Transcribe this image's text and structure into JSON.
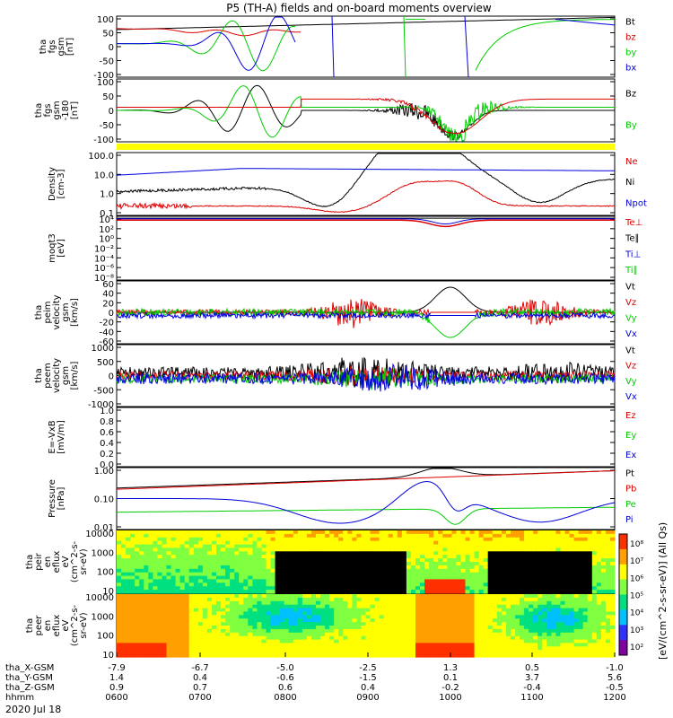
{
  "title": "P5 (TH-A) fields and on-board moments overview",
  "date_label": "2020 Jul 18",
  "colorbar_label": "[eV/(cm^2-s-sr-eV)] (All Qs)",
  "colors": {
    "black": "#000000",
    "red": "#dd0000",
    "green": "#00cc00",
    "blue": "#0000dd",
    "yellow": "#ffff00"
  },
  "chart_data": [
    {
      "id": "fgs",
      "type": "line",
      "ylabel_lines": [
        "tha",
        "fgs",
        "gsm",
        "[nT]"
      ],
      "ylim": [
        -100,
        100
      ],
      "yticks": [
        "100",
        "50",
        "0",
        "-50",
        "-100"
      ],
      "series": [
        {
          "name": "Bt",
          "color": "black"
        },
        {
          "name": "bz",
          "color": "red"
        },
        {
          "name": "by",
          "color": "green"
        },
        {
          "name": "bx",
          "color": "blue"
        }
      ]
    },
    {
      "id": "fgs_dsl",
      "type": "line",
      "ylabel_lines": [
        "tha",
        "fgs",
        "gsm",
        "-180",
        "[nT]"
      ],
      "ylim": [
        -130,
        110
      ],
      "yticks": [
        "100",
        "50",
        "0",
        "-50",
        "-100"
      ],
      "series": [
        {
          "name": "Bz",
          "color": "black"
        },
        {
          "name": "By",
          "color": "green"
        }
      ]
    },
    {
      "id": "density",
      "type": "line",
      "ylabel_lines": [
        "Density",
        "[cm-3]"
      ],
      "log": true,
      "ylim": [
        0.05,
        150
      ],
      "yticks": [
        "100.0",
        "10.0",
        "1.0",
        "0.1"
      ],
      "series": [
        {
          "name": "Ne",
          "color": "red"
        },
        {
          "name": "Ni",
          "color": "black"
        },
        {
          "name": "Npot",
          "color": "blue"
        }
      ]
    },
    {
      "id": "temp",
      "type": "line",
      "ylabel_lines": [
        "moqt3",
        "[eV]"
      ],
      "yticks": [
        "10⁴",
        "10²",
        "10⁰",
        "10⁻²",
        "10⁻⁴",
        "10⁻⁶",
        "10⁻⁸"
      ],
      "series": [
        {
          "name": "Te⊥",
          "color": "red"
        },
        {
          "name": "Te∥",
          "color": "black"
        },
        {
          "name": "Ti⊥",
          "color": "blue"
        },
        {
          "name": "Ti∥",
          "color": "green"
        }
      ]
    },
    {
      "id": "peim",
      "type": "line",
      "ylabel_lines": [
        "tha",
        "peim",
        "velocity",
        "gsm",
        "[km/s]"
      ],
      "ylim": [
        -60,
        60
      ],
      "yticks": [
        "60",
        "40",
        "20",
        "0",
        "-20",
        "-40",
        "-60"
      ],
      "series": [
        {
          "name": "Vt",
          "color": "black"
        },
        {
          "name": "Vz",
          "color": "red"
        },
        {
          "name": "Vy",
          "color": "green"
        },
        {
          "name": "Vx",
          "color": "blue"
        }
      ]
    },
    {
      "id": "peem",
      "type": "line",
      "ylabel_lines": [
        "tha",
        "peem",
        "velocity",
        "gsm",
        "[km/s]"
      ],
      "ylim": [
        -1000,
        1000
      ],
      "yticks": [
        "1000",
        "500",
        "0",
        "-500",
        "-1000"
      ],
      "series": [
        {
          "name": "Vt",
          "color": "black"
        },
        {
          "name": "Vz",
          "color": "red"
        },
        {
          "name": "Vy",
          "color": "green"
        },
        {
          "name": "Vx",
          "color": "blue"
        }
      ]
    },
    {
      "id": "efield",
      "type": "line",
      "ylabel_lines": [
        "E=-VxB",
        "[mV/m]"
      ],
      "yticks": [
        "1.0",
        "0.8",
        "0.6",
        "0.4",
        "0.2",
        "0.0"
      ],
      "series": [
        {
          "name": "Ez",
          "color": "red"
        },
        {
          "name": "Ey",
          "color": "green"
        },
        {
          "name": "Ex",
          "color": "blue"
        }
      ]
    },
    {
      "id": "pressure",
      "type": "line",
      "ylabel_lines": [
        "Pressure",
        "[nPa]"
      ],
      "log": true,
      "ylim": [
        0.004,
        8
      ],
      "yticks": [
        "1.00",
        "0.10",
        "0.01"
      ],
      "series": [
        {
          "name": "Pt",
          "color": "black"
        },
        {
          "name": "Pb",
          "color": "red"
        },
        {
          "name": "Pe",
          "color": "green"
        },
        {
          "name": "Pi",
          "color": "blue"
        }
      ]
    },
    {
      "id": "peir",
      "type": "heatmap",
      "ylabel_lines": [
        "tha",
        "peir",
        "en",
        "eflux",
        "eV",
        "(cm^2-s-",
        "sr-eV)"
      ],
      "ylim": [
        5,
        25000
      ],
      "yticks": [
        "10000",
        "1000",
        "100",
        "10"
      ]
    },
    {
      "id": "peer",
      "type": "heatmap",
      "ylabel_lines": [
        "tha",
        "peer",
        "en",
        "eflux",
        "eV",
        "(cm^2-s-",
        "sr-eV)"
      ],
      "ylim": [
        5,
        25000
      ],
      "yticks": [
        "10000",
        "1000",
        "100",
        "10"
      ]
    }
  ],
  "colorbar_ticks": [
    "10⁸",
    "10⁷",
    "10⁶",
    "10⁵",
    "10⁴",
    "10³",
    "10²"
  ],
  "xaxis": {
    "rows": [
      {
        "label": "tha_X-GSM",
        "values": [
          "-7.9",
          "-6.7",
          "-5.0",
          "-2.5",
          "1.3",
          "0.5",
          "-1.0"
        ]
      },
      {
        "label": "tha_Y-GSM",
        "values": [
          "1.4",
          "0.4",
          "-0.6",
          "-1.5",
          "0.1",
          "3.7",
          "5.6"
        ]
      },
      {
        "label": "tha_Z-GSM",
        "values": [
          "0.9",
          "0.7",
          "0.6",
          "0.4",
          "-0.2",
          "-0.4",
          "-0.5"
        ]
      },
      {
        "label": "hhmm",
        "values": [
          "0600",
          "0700",
          "0800",
          "0900",
          "1000",
          "1100",
          "1200"
        ]
      }
    ]
  }
}
